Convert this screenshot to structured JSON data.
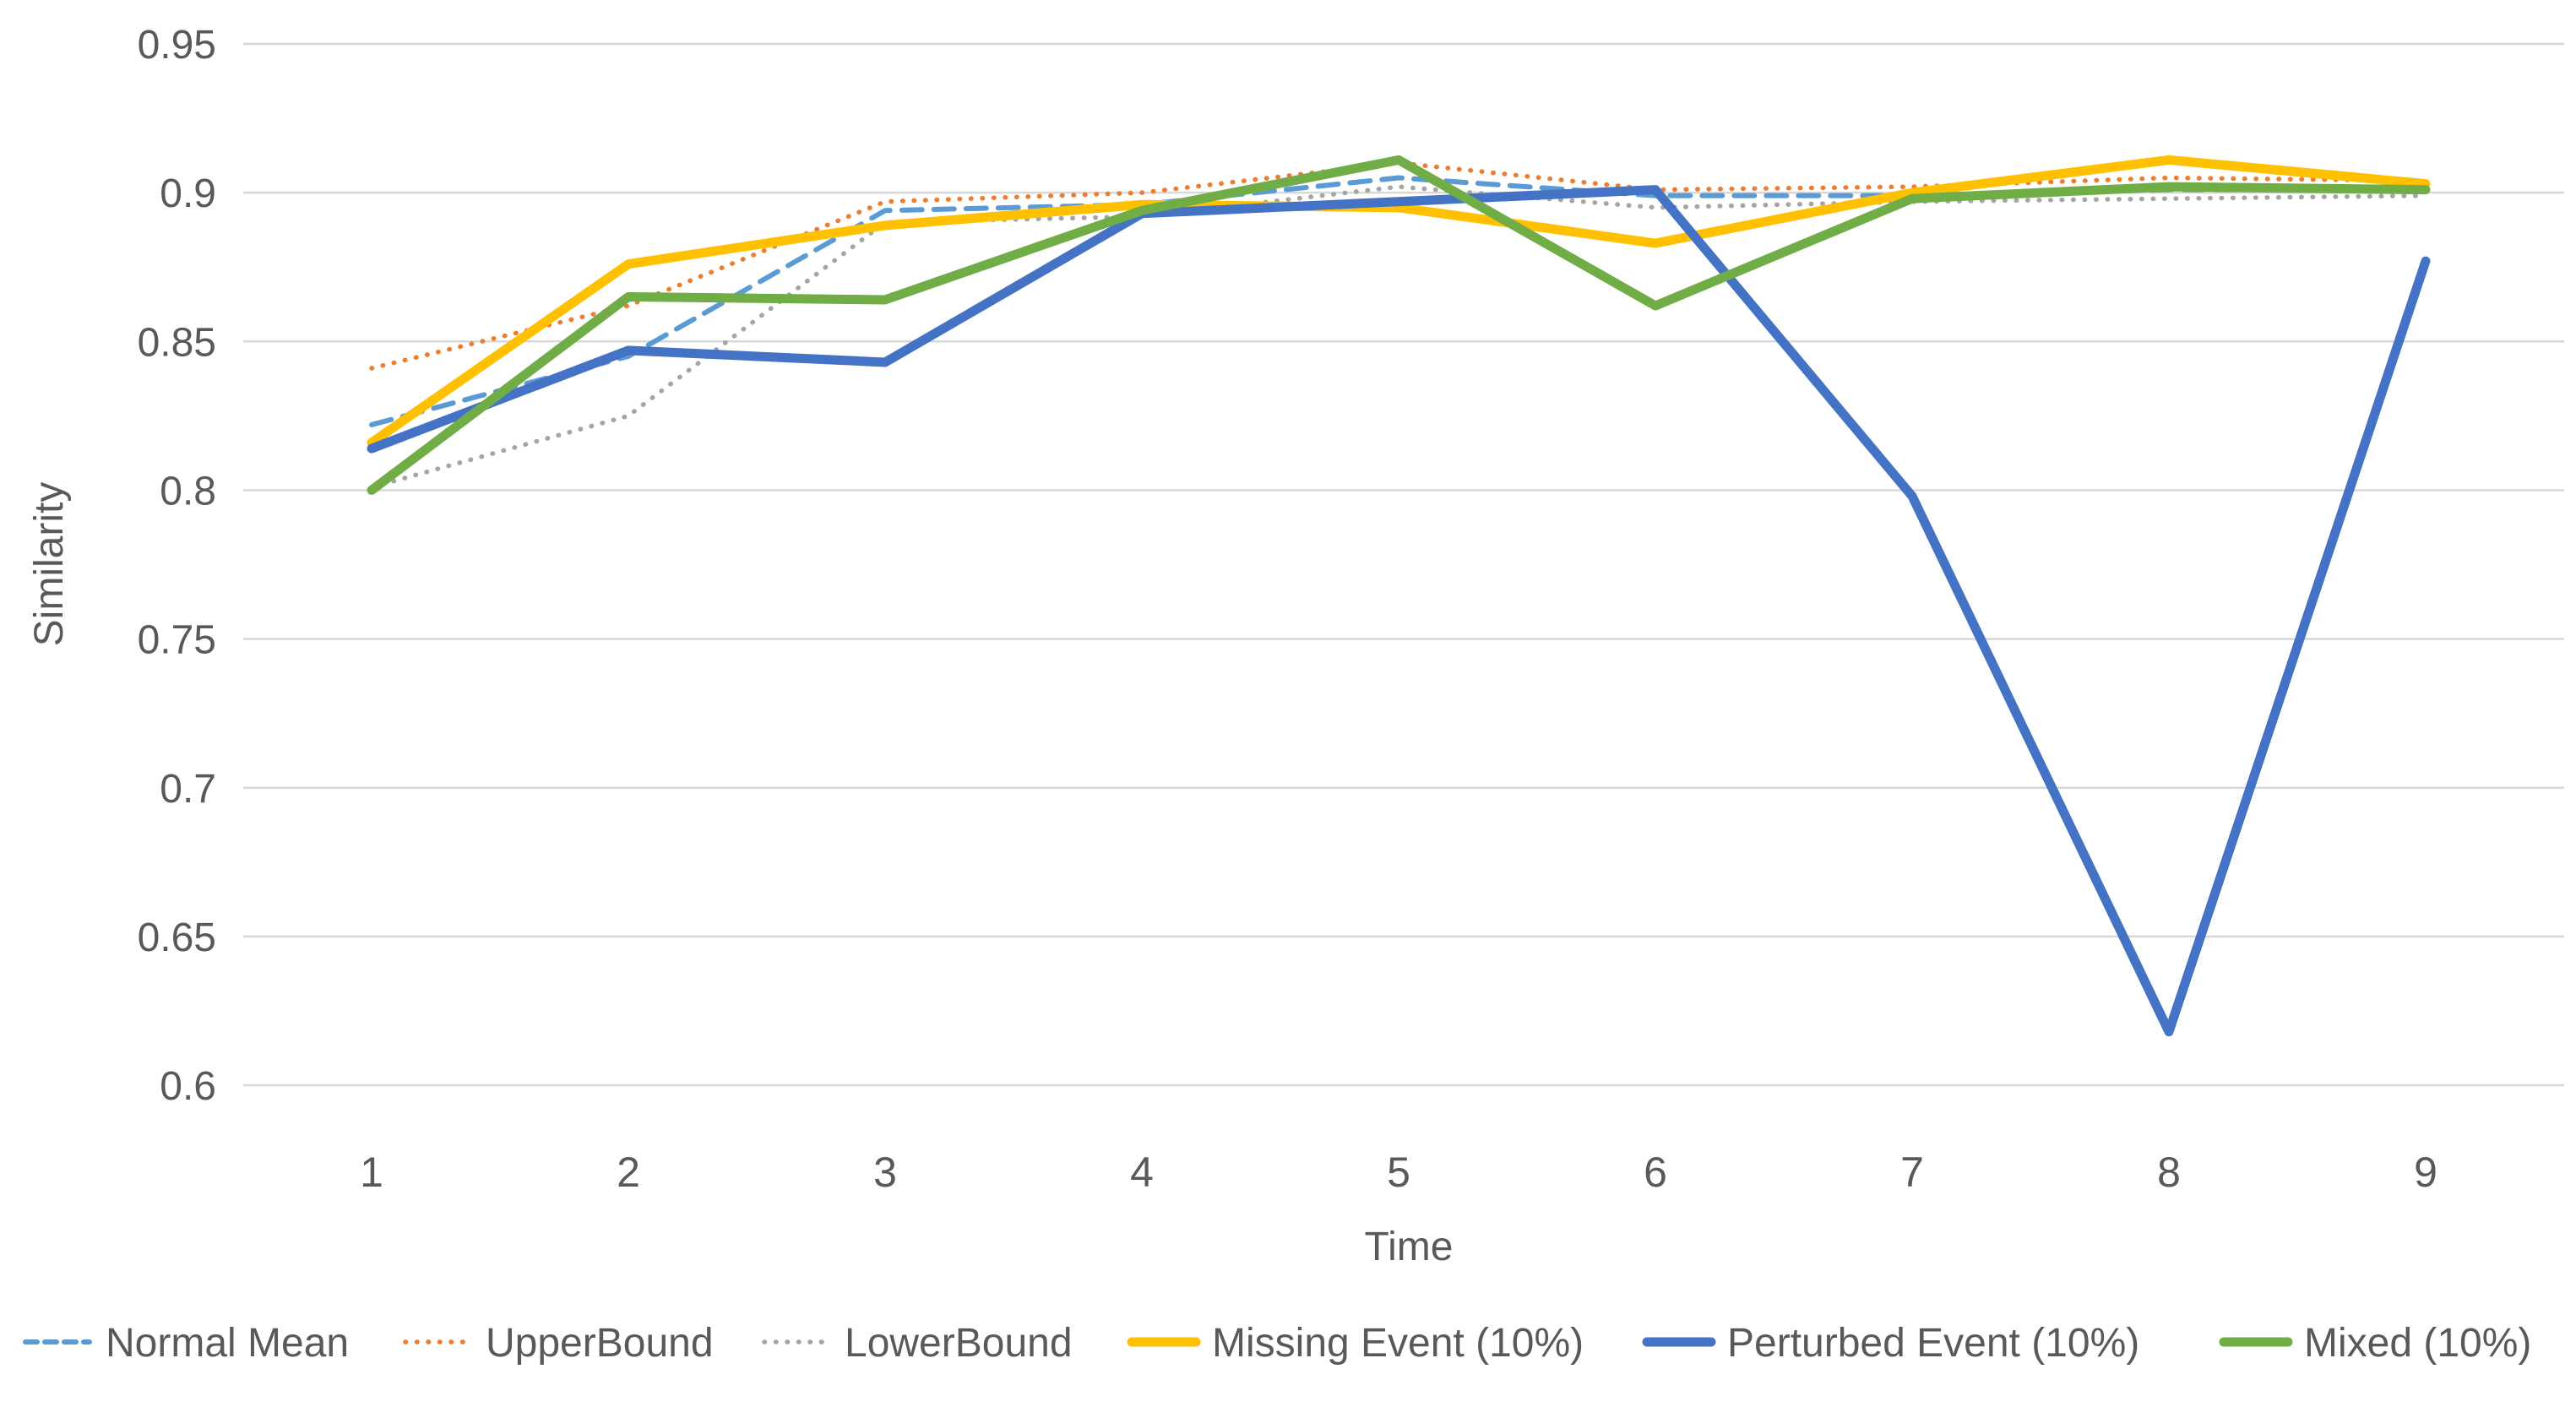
{
  "figure": {
    "background": "#ffffff",
    "text_color": "#595959",
    "gridline_color": "#d8d8d8"
  },
  "chart_data": {
    "type": "line",
    "title": "",
    "xlabel": "Time",
    "ylabel": "Similarity",
    "x": [
      1,
      2,
      3,
      4,
      5,
      6,
      7,
      8,
      9
    ],
    "xticklabels": [
      "1",
      "2",
      "3",
      "4",
      "5",
      "6",
      "7",
      "8",
      "9"
    ],
    "yticks": [
      0.6,
      0.65,
      0.7,
      0.75,
      0.8,
      0.85,
      0.9,
      0.95
    ],
    "yticklabels": [
      "0.6",
      "0.65",
      "0.7",
      "0.75",
      "0.8",
      "0.85",
      "0.9",
      "0.95"
    ],
    "ylim": [
      0.6,
      0.95
    ],
    "xlim": [
      1,
      9
    ],
    "grid": "horizontal",
    "legend_position": "bottom",
    "series": [
      {
        "name": "Normal Mean",
        "color": "#5B9BD5",
        "style": "dashed",
        "values": [
          0.822,
          0.845,
          0.894,
          0.896,
          0.905,
          0.899,
          0.899,
          0.901,
          0.901
        ]
      },
      {
        "name": "UpperBound",
        "color": "#ED7D31",
        "style": "dotted",
        "values": [
          0.841,
          0.862,
          0.897,
          0.9,
          0.91,
          0.901,
          0.902,
          0.905,
          0.904
        ]
      },
      {
        "name": "LowerBound",
        "color": "#A5A5A5",
        "style": "dotted",
        "values": [
          0.801,
          0.825,
          0.89,
          0.892,
          0.902,
          0.895,
          0.897,
          0.898,
          0.899
        ]
      },
      {
        "name": "Missing Event (10%)",
        "color": "#FFC000",
        "style": "solid",
        "values": [
          0.816,
          0.876,
          0.889,
          0.896,
          0.895,
          0.883,
          0.9,
          0.911,
          0.903
        ]
      },
      {
        "name": "Perturbed Event (10%)",
        "color": "#4472C4",
        "style": "solid",
        "values": [
          0.814,
          0.847,
          0.843,
          0.893,
          0.897,
          0.901,
          0.798,
          0.618,
          0.877
        ]
      },
      {
        "name": "Mixed (10%)",
        "color": "#70AD47",
        "style": "solid",
        "values": [
          0.8,
          0.865,
          0.864,
          0.894,
          0.911,
          0.862,
          0.898,
          0.902,
          0.901
        ]
      }
    ]
  }
}
